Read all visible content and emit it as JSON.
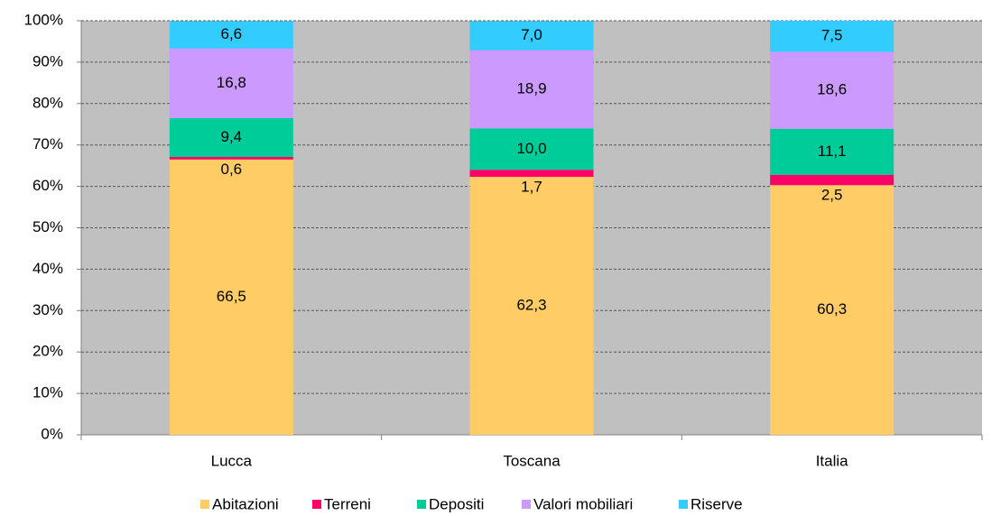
{
  "chart_data": {
    "type": "stacked_bar_100",
    "categories": [
      "Lucca",
      "Toscana",
      "Italia"
    ],
    "series": [
      {
        "name": "Abitazioni",
        "color": "#ffcc66",
        "values": [
          66.5,
          62.3,
          60.3
        ],
        "value_labels": [
          "66,5",
          "62,3",
          "60,3"
        ]
      },
      {
        "name": "Terreni",
        "color": "#ff0066",
        "values": [
          0.6,
          1.7,
          2.5
        ],
        "value_labels": [
          "0,6",
          "1,7",
          "2,5"
        ]
      },
      {
        "name": "Depositi",
        "color": "#00cc99",
        "values": [
          9.4,
          10.0,
          11.1
        ],
        "value_labels": [
          "9,4",
          "10,0",
          "11,1"
        ]
      },
      {
        "name": "Valori mobiliari",
        "color": "#cc99ff",
        "values": [
          16.8,
          18.9,
          18.6
        ],
        "value_labels": [
          "16,8",
          "18,9",
          "18,6"
        ]
      },
      {
        "name": "Riserve",
        "color": "#33ccff",
        "values": [
          6.6,
          7.0,
          7.5
        ],
        "value_labels": [
          "6,6",
          "7,0",
          "7,5"
        ]
      }
    ],
    "ylim": [
      0,
      100
    ],
    "yticks": [
      {
        "value": 0,
        "label": "0%"
      },
      {
        "value": 10,
        "label": "10%"
      },
      {
        "value": 20,
        "label": "20%"
      },
      {
        "value": 30,
        "label": "30%"
      },
      {
        "value": 40,
        "label": "40%"
      },
      {
        "value": 50,
        "label": "50%"
      },
      {
        "value": 60,
        "label": "60%"
      },
      {
        "value": 70,
        "label": "70%"
      },
      {
        "value": 80,
        "label": "80%"
      },
      {
        "value": 90,
        "label": "90%"
      },
      {
        "value": 100,
        "label": "100%"
      }
    ],
    "grid": true,
    "legend": "bottom"
  }
}
